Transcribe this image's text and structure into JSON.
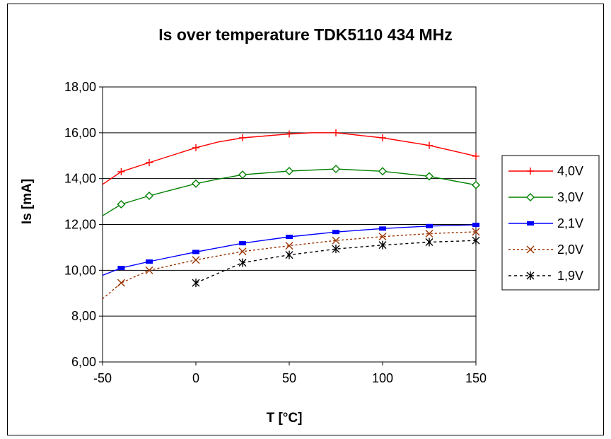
{
  "chart_data": {
    "type": "line",
    "title": "Is over temperature TDK5110 434 MHz",
    "xlabel": "T [°C]",
    "ylabel": "Is [mA]",
    "xlim": [
      -50,
      150
    ],
    "ylim": [
      6,
      18
    ],
    "x_ticks": [
      -50,
      0,
      50,
      100,
      150
    ],
    "x_tick_labels": [
      "-50",
      "0",
      "50",
      "100",
      "150"
    ],
    "y_ticks": [
      6,
      8,
      10,
      12,
      14,
      16,
      18
    ],
    "y_tick_labels": [
      "6,00",
      "8,00",
      "10,00",
      "12,00",
      "14,00",
      "16,00",
      "18,00"
    ],
    "grid": "horizontal",
    "legend_position": "right",
    "series": [
      {
        "name": "4,0V",
        "color": "#ff0000",
        "dash": "solid",
        "marker": "plus",
        "curve": [
          [
            -50,
            13.75
          ],
          [
            -40,
            14.3
          ],
          [
            -25,
            14.7
          ],
          [
            0,
            15.35
          ],
          [
            12,
            15.6
          ],
          [
            25,
            15.78
          ],
          [
            50,
            15.95
          ],
          [
            62,
            16.0
          ],
          [
            75,
            16.0
          ],
          [
            100,
            15.78
          ],
          [
            125,
            15.45
          ],
          [
            150,
            14.98
          ]
        ],
        "points": [
          [
            -40,
            14.3
          ],
          [
            -25,
            14.7
          ],
          [
            0,
            15.35
          ],
          [
            25,
            15.78
          ],
          [
            50,
            15.95
          ],
          [
            75,
            16.0
          ],
          [
            100,
            15.78
          ],
          [
            125,
            15.45
          ],
          [
            150,
            14.98
          ]
        ]
      },
      {
        "name": "3,0V",
        "color": "#008000",
        "dash": "solid",
        "marker": "diamond",
        "curve": [
          [
            -50,
            12.38
          ],
          [
            -40,
            12.88
          ],
          [
            -25,
            13.25
          ],
          [
            0,
            13.78
          ],
          [
            12,
            13.98
          ],
          [
            25,
            14.17
          ],
          [
            50,
            14.33
          ],
          [
            75,
            14.42
          ],
          [
            100,
            14.32
          ],
          [
            125,
            14.1
          ],
          [
            150,
            13.72
          ]
        ],
        "points": [
          [
            -40,
            12.88
          ],
          [
            -25,
            13.25
          ],
          [
            0,
            13.78
          ],
          [
            25,
            14.17
          ],
          [
            50,
            14.33
          ],
          [
            75,
            14.42
          ],
          [
            100,
            14.32
          ],
          [
            125,
            14.1
          ],
          [
            150,
            13.72
          ]
        ]
      },
      {
        "name": "2,1V",
        "color": "#0000ff",
        "dash": "solid",
        "marker": "square",
        "curve": [
          [
            -50,
            9.78
          ],
          [
            -40,
            10.1
          ],
          [
            -25,
            10.38
          ],
          [
            0,
            10.8
          ],
          [
            25,
            11.18
          ],
          [
            50,
            11.46
          ],
          [
            75,
            11.67
          ],
          [
            100,
            11.82
          ],
          [
            125,
            11.93
          ],
          [
            150,
            11.98
          ]
        ],
        "points": [
          [
            -40,
            10.1
          ],
          [
            -25,
            10.38
          ],
          [
            0,
            10.8
          ],
          [
            25,
            11.18
          ],
          [
            50,
            11.46
          ],
          [
            75,
            11.67
          ],
          [
            100,
            11.82
          ],
          [
            125,
            11.93
          ],
          [
            150,
            11.98
          ]
        ]
      },
      {
        "name": "2,0V",
        "color": "#993300",
        "dash": "dotted",
        "marker": "x",
        "curve": [
          [
            -50,
            8.75
          ],
          [
            -40,
            9.45
          ],
          [
            -25,
            10.0
          ],
          [
            0,
            10.45
          ],
          [
            25,
            10.82
          ],
          [
            50,
            11.07
          ],
          [
            75,
            11.3
          ],
          [
            100,
            11.47
          ],
          [
            125,
            11.6
          ],
          [
            150,
            11.68
          ]
        ],
        "points": [
          [
            -40,
            9.45
          ],
          [
            -25,
            10.0
          ],
          [
            0,
            10.45
          ],
          [
            25,
            10.82
          ],
          [
            50,
            11.07
          ],
          [
            75,
            11.3
          ],
          [
            100,
            11.47
          ],
          [
            125,
            11.6
          ],
          [
            150,
            11.68
          ]
        ]
      },
      {
        "name": "1,9V",
        "color": "#000000",
        "dash": "dashed",
        "marker": "asterisk",
        "curve": [
          [
            0,
            9.45
          ],
          [
            25,
            10.33
          ],
          [
            50,
            10.67
          ],
          [
            75,
            10.93
          ],
          [
            100,
            11.1
          ],
          [
            125,
            11.23
          ],
          [
            150,
            11.3
          ]
        ],
        "points": [
          [
            0,
            9.45
          ],
          [
            25,
            10.33
          ],
          [
            50,
            10.67
          ],
          [
            75,
            10.93
          ],
          [
            100,
            11.1
          ],
          [
            125,
            11.23
          ],
          [
            150,
            11.3
          ]
        ]
      }
    ]
  }
}
